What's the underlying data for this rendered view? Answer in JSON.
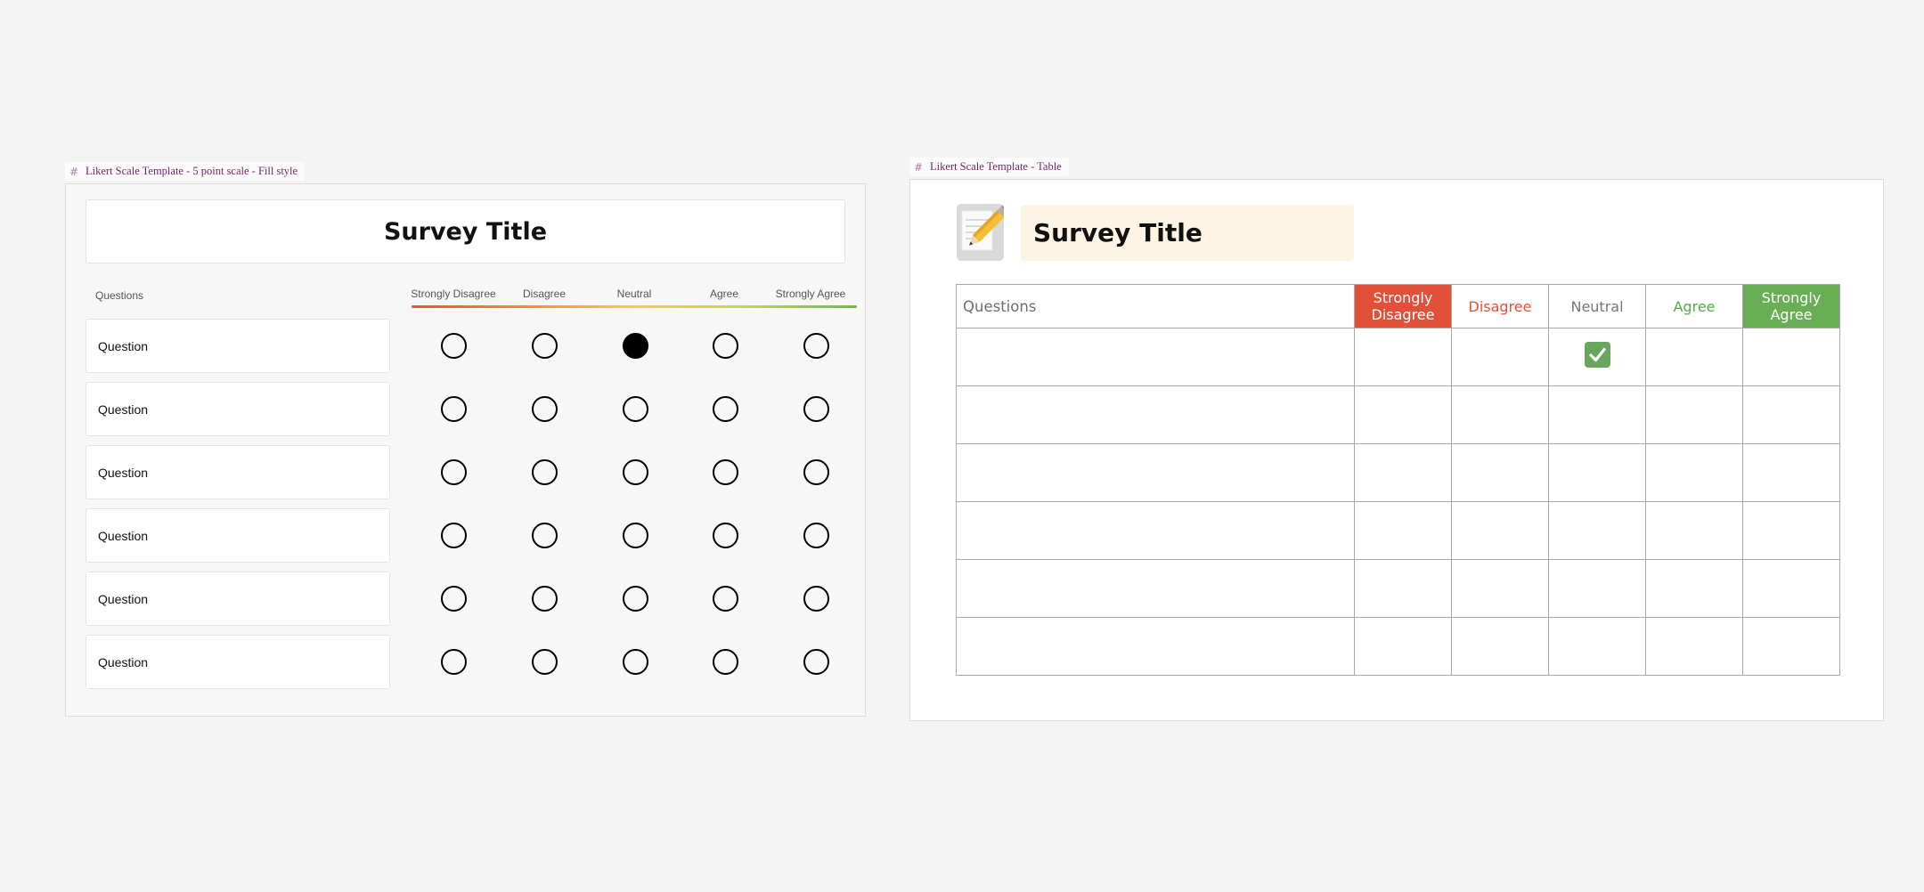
{
  "frame1": {
    "label": "Likert Scale Template - 5 point scale - Fill style",
    "title": "Survey Title",
    "questions_header": "Questions",
    "columns": [
      "Strongly Disagree",
      "Disagree",
      "Neutral",
      "Agree",
      "Strongly Agree"
    ],
    "questions": [
      "Question",
      "Question",
      "Question",
      "Question",
      "Question",
      "Question"
    ],
    "selected": [
      {
        "row": 0,
        "col": 2
      }
    ]
  },
  "frame2": {
    "label": "Likert Scale Template - Table",
    "title": "Survey Title",
    "questions_header": "Questions",
    "columns": [
      "Strongly Disagree",
      "Disagree",
      "Neutral",
      "Agree",
      "Strongly Agree"
    ],
    "column_colors": {
      "strongly_disagree": "#e2503a",
      "disagree": "#e2503a",
      "neutral": "#777777",
      "agree": "#58a84b",
      "strongly_agree": "#67ae55"
    },
    "row_count": 6,
    "checked": [
      {
        "row": 0,
        "col": 2
      }
    ],
    "icon": "pencil-memo-icon"
  }
}
